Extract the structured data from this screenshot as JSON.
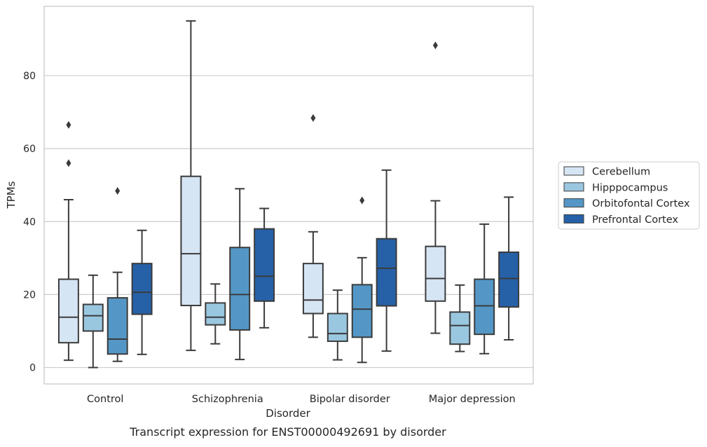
{
  "chart_data": {
    "type": "box",
    "xlabel": "Disorder",
    "ylabel": "TPMs",
    "caption": "Transcript expression for ENST00000492691 by disorder",
    "categories": [
      "Control",
      "Schizophrenia",
      "Bipolar disorder",
      "Major depression"
    ],
    "ylim": [
      -4.5,
      99
    ],
    "yticks": [
      0,
      20,
      40,
      60,
      80
    ],
    "grid": "horizontal",
    "legend_position": "right",
    "series": [
      {
        "name": "Cerebellum",
        "color": "#d6e5f4",
        "boxes": [
          {
            "whisker_low": 2,
            "q1": 6.8,
            "median": 13.8,
            "q3": 24.2,
            "whisker_high": 46,
            "outliers": [
              56,
              66.5
            ]
          },
          {
            "whisker_low": 4.7,
            "q1": 17,
            "median": 31.2,
            "q3": 52.4,
            "whisker_high": 95,
            "outliers": []
          },
          {
            "whisker_low": 8.3,
            "q1": 14.8,
            "median": 18.5,
            "q3": 28.5,
            "whisker_high": 37.2,
            "outliers": [
              68.4
            ]
          },
          {
            "whisker_low": 9.4,
            "q1": 18.2,
            "median": 24.4,
            "q3": 33.2,
            "whisker_high": 45.7,
            "outliers": [
              88.3
            ]
          }
        ]
      },
      {
        "name": "Hipppocampus",
        "color": "#9ac7e0",
        "boxes": [
          {
            "whisker_low": 0,
            "q1": 10,
            "median": 14.2,
            "q3": 17.3,
            "whisker_high": 25.3,
            "outliers": []
          },
          {
            "whisker_low": 6.5,
            "q1": 11.7,
            "median": 13.8,
            "q3": 17.7,
            "whisker_high": 22.9,
            "outliers": []
          },
          {
            "whisker_low": 2.1,
            "q1": 7.2,
            "median": 9.3,
            "q3": 14.8,
            "whisker_high": 21.2,
            "outliers": []
          },
          {
            "whisker_low": 4.4,
            "q1": 6.4,
            "median": 11.5,
            "q3": 15.2,
            "whisker_high": 22.6,
            "outliers": []
          }
        ]
      },
      {
        "name": "Orbitofontal Cortex",
        "color": "#5497c6",
        "boxes": [
          {
            "whisker_low": 1.7,
            "q1": 3.7,
            "median": 7.8,
            "q3": 19.1,
            "whisker_high": 26.1,
            "outliers": [
              48.4
            ]
          },
          {
            "whisker_low": 2.2,
            "q1": 10.3,
            "median": 20,
            "q3": 32.9,
            "whisker_high": 49,
            "outliers": []
          },
          {
            "whisker_low": 1.4,
            "q1": 8.3,
            "median": 16,
            "q3": 22.7,
            "whisker_high": 30.1,
            "outliers": [
              45.8
            ]
          },
          {
            "whisker_low": 3.8,
            "q1": 9.1,
            "median": 16.9,
            "q3": 24.2,
            "whisker_high": 39.3,
            "outliers": []
          }
        ]
      },
      {
        "name": "Prefrontal Cortex",
        "color": "#2661a8",
        "boxes": [
          {
            "whisker_low": 3.6,
            "q1": 14.6,
            "median": 20.6,
            "q3": 28.5,
            "whisker_high": 37.6,
            "outliers": []
          },
          {
            "whisker_low": 10.9,
            "q1": 18.2,
            "median": 25,
            "q3": 38,
            "whisker_high": 43.6,
            "outliers": []
          },
          {
            "whisker_low": 4.5,
            "q1": 16.9,
            "median": 27.2,
            "q3": 35.3,
            "whisker_high": 54.1,
            "outliers": []
          },
          {
            "whisker_low": 7.6,
            "q1": 16.6,
            "median": 24.4,
            "q3": 31.6,
            "whisker_high": 46.7,
            "outliers": []
          }
        ]
      }
    ]
  }
}
